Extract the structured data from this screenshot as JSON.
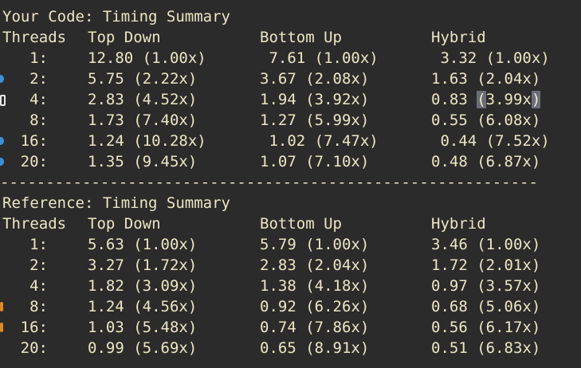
{
  "your_code": {
    "title": "Your Code: Timing Summary",
    "headers": {
      "threads": "Threads",
      "top_down": "Top Down",
      "bottom_up": "Bottom Up",
      "hybrid": "Hybrid"
    },
    "rows": [
      {
        "threads": "1:",
        "top_down": "12.80 (1.00x)",
        "bottom_up": " 7.61 (1.00x)",
        "hybrid": " 3.32 (1.00x)"
      },
      {
        "threads": "2:",
        "top_down": "5.75 (2.22x)",
        "bottom_up": "3.67 (2.08x)",
        "hybrid": "1.63 (2.04x)"
      },
      {
        "threads": "4:",
        "top_down": "2.83 (4.52x)",
        "bottom_up": "1.94 (3.92x)",
        "hybrid_value": "0.83 ",
        "hybrid_open": "(",
        "hybrid_mid": "3.99x",
        "hybrid_close": ")"
      },
      {
        "threads": "8:",
        "top_down": "1.73 (7.40x)",
        "bottom_up": "1.27 (5.99x)",
        "hybrid": "0.55 (6.08x)"
      },
      {
        "threads": "16:",
        "top_down": "1.24 (10.28x)",
        "bottom_up": " 1.02 (7.47x)",
        "hybrid": " 0.44 (7.52x)"
      },
      {
        "threads": "20:",
        "top_down": "1.35 (9.45x)",
        "bottom_up": "1.07 (7.10x)",
        "hybrid": "0.48 (6.87x)"
      }
    ]
  },
  "separator": "-----------------------------------------------------------",
  "reference": {
    "title": "Reference: Timing Summary",
    "headers": {
      "threads": "Threads",
      "top_down": "Top Down",
      "bottom_up": "Bottom Up",
      "hybrid": "Hybrid"
    },
    "rows": [
      {
        "threads": "1:",
        "top_down": "5.63 (1.00x)",
        "bottom_up": "5.79 (1.00x)",
        "hybrid": "3.46 (1.00x)"
      },
      {
        "threads": "2:",
        "top_down": "3.27 (1.72x)",
        "bottom_up": "2.83 (2.04x)",
        "hybrid": "1.72 (2.01x)"
      },
      {
        "threads": "4:",
        "top_down": "1.82 (3.09x)",
        "bottom_up": "1.38 (4.18x)",
        "hybrid": "0.97 (3.57x)"
      },
      {
        "threads": "8:",
        "top_down": "1.24 (4.56x)",
        "bottom_up": "0.92 (6.26x)",
        "hybrid": "0.68 (5.06x)"
      },
      {
        "threads": "16:",
        "top_down": "1.03 (5.48x)",
        "bottom_up": "0.74 (7.86x)",
        "hybrid": "0.56 (6.17x)"
      },
      {
        "threads": "20:",
        "top_down": "0.99 (5.69x)",
        "bottom_up": "0.65 (8.91x)",
        "hybrid": "0.51 (6.83x)"
      }
    ]
  },
  "colors": {
    "background": "#2b2b2b",
    "text": "#ece6c4",
    "selection": "#6b6e78",
    "gutter_blue": "#3d8fd8",
    "gutter_orange": "#e08a1e"
  }
}
